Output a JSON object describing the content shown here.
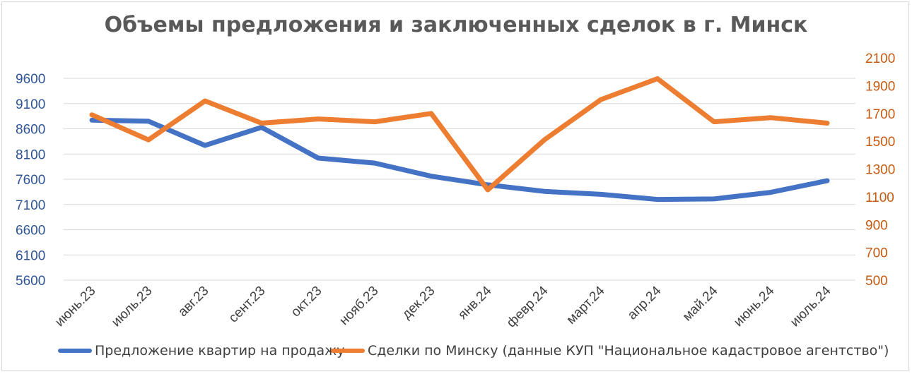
{
  "chart_data": {
    "type": "line",
    "title": "Объемы предложения и заключенных сделок в г. Минск",
    "categories": [
      "июнь.23",
      "июль.23",
      "авг.23",
      "сент.23",
      "окт.23",
      "нояб.23",
      "дек.23",
      "янв.24",
      "февр.24",
      "март.24",
      "апр.24",
      "май.24",
      "июнь.24",
      "июль.24"
    ],
    "y_left": {
      "ticks": [
        "9600",
        "9100",
        "8600",
        "8100",
        "7600",
        "7100",
        "6600",
        "6100",
        "5600"
      ],
      "ylim": [
        5600,
        9600
      ],
      "color": "#2f5597"
    },
    "y_right": {
      "ticks": [
        "2100",
        "1900",
        "1700",
        "1500",
        "1300",
        "1100",
        "900",
        "700",
        "500"
      ],
      "ylim": [
        500,
        2100
      ],
      "color": "#c55a11"
    },
    "series": [
      {
        "name": "Предложение квартир на продажу",
        "axis": "left",
        "color": "#4472c4",
        "values": [
          8770,
          8750,
          8270,
          8630,
          8020,
          7920,
          7660,
          7490,
          7360,
          7300,
          7200,
          7210,
          7340,
          7570
        ]
      },
      {
        "name": "Сделки по Минску (данные КУП \"Национальное кадастровое агентство\")",
        "axis": "right",
        "color": "#ed7d31",
        "values": [
          1690,
          1510,
          1790,
          1630,
          1660,
          1640,
          1700,
          1150,
          1510,
          1800,
          1950,
          1640,
          1670,
          1630
        ]
      }
    ],
    "grid": true,
    "legend": "bottom"
  }
}
